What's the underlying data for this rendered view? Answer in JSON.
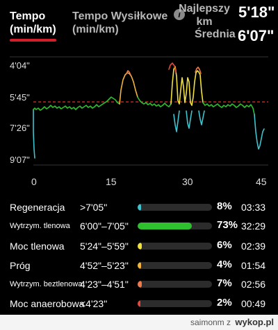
{
  "header": {
    "tabs": [
      {
        "label_line1": "Tempo",
        "label_line2": "(min/km)"
      },
      {
        "label_line1": "Tempo Wysiłkowe",
        "label_line2": "(min/km)"
      }
    ],
    "info_icon_glyph": "i",
    "best": {
      "label_line1": "Najlepszy",
      "label_line2": "km",
      "value": "5'18\""
    },
    "average": {
      "label": "Średnia",
      "value": "6'07\""
    }
  },
  "chart_data": {
    "type": "line",
    "y_ticks": [
      "4'04\"",
      "5'45\"",
      "7'26\"",
      "9'07\""
    ],
    "x_ticks": [
      "0",
      "15",
      "30",
      "45"
    ],
    "reference_line": "6'07\"",
    "colors": {
      "recovery": "#3ec4cf",
      "aerobic": "#2ec02e",
      "threshold_power": "#f4e23c",
      "threshold": "#f2b43b",
      "anaerobic": "#f07a4a",
      "max": "#e5473f",
      "reference": "#e03030"
    }
  },
  "zones": [
    {
      "name": "Regeneracja",
      "range": ">7'05\"",
      "percent": "8%",
      "time": "03:33",
      "fill": 0.05,
      "color": "#3ec4cf",
      "small": false
    },
    {
      "name": "Wytrzym. tlenowa",
      "range": "6'00\"–7'05\"",
      "percent": "73%",
      "time": "32:29",
      "fill": 0.73,
      "color": "#2ec02e",
      "small": true
    },
    {
      "name": "Moc tlenowa",
      "range": "5'24\"–5'59\"",
      "percent": "6%",
      "time": "02:39",
      "fill": 0.06,
      "color": "#f4e23c",
      "small": false
    },
    {
      "name": "Próg",
      "range": "4'52\"–5'23\"",
      "percent": "4%",
      "time": "01:54",
      "fill": 0.05,
      "color": "#f2b43b",
      "small": false
    },
    {
      "name": "Wytrzym. beztlenowa",
      "range": "4'23\"–4'51\"",
      "percent": "7%",
      "time": "02:56",
      "fill": 0.06,
      "color": "#f07a4a",
      "small": true
    },
    {
      "name": "Moc anaerobowa",
      "range": "<4'23\"",
      "percent": "2%",
      "time": "00:49",
      "fill": 0.04,
      "color": "#e5473f",
      "small": false
    }
  ],
  "footer": {
    "user": "saimonm z",
    "logo": "wykop.pl"
  }
}
